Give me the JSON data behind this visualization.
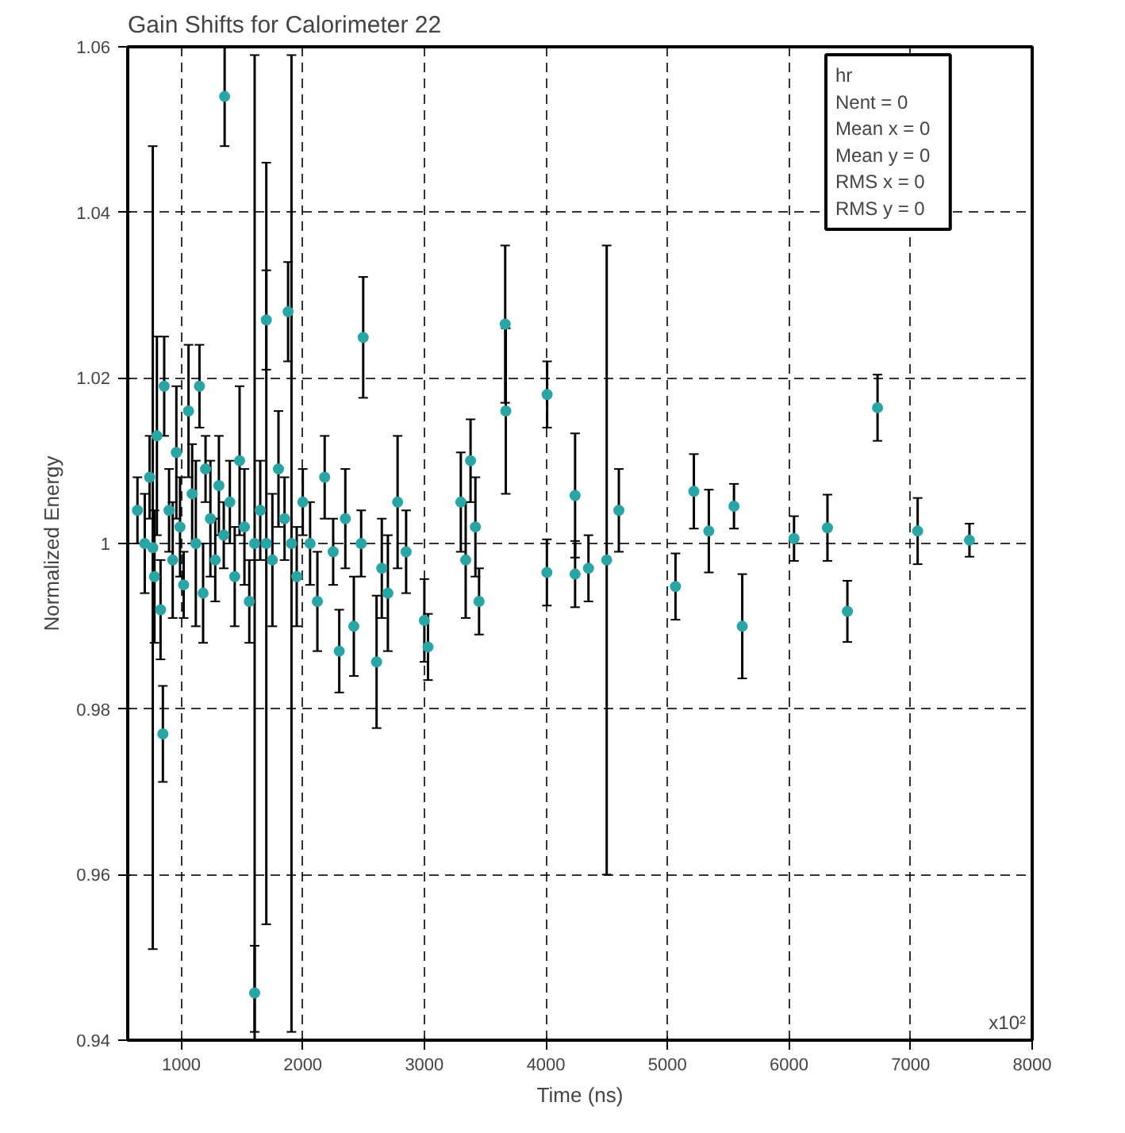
{
  "chart_data": {
    "type": "scatter",
    "title": "Gain Shifts for Calorimeter 22",
    "xlabel": "Time (ns)",
    "ylabel": "Normalized Energy",
    "annotations": [
      "hr",
      "Nent = 0",
      "Mean x =   0",
      "Mean y =   0",
      "RMS x =   0",
      "RMS y =   0",
      "x10²"
    ],
    "xlim": [
      560,
      8000
    ],
    "ylim": [
      0.94,
      1.06
    ],
    "xticks": [
      1000,
      2000,
      3000,
      4000,
      5000,
      6000,
      7000,
      8000
    ],
    "yticks": [
      0.94,
      0.96,
      0.98,
      1,
      1.02,
      1.04,
      1.06
    ],
    "grid": true,
    "marker": "circle",
    "series": [
      {
        "color": "#2aa5a5",
        "x": [
          640,
          700,
          740,
          766,
          780,
          800,
          830,
          849,
          860,
          900,
          930,
          960,
          990,
          1020,
          1060,
          1090,
          1120,
          1150,
          1180,
          1200,
          1240,
          1280,
          1310,
          1350,
          1357,
          1400,
          1440,
          1480,
          1520,
          1560,
          1604,
          1604,
          1650,
          1700,
          1700,
          1750,
          1800,
          1850,
          1879,
          1907,
          1950,
          2000,
          2060,
          2120,
          2180,
          2250,
          2300,
          2350,
          2420,
          2480,
          2497,
          2607,
          2650,
          2700,
          2780,
          2850,
          3000,
          3030,
          3300,
          3340,
          3380,
          3420,
          3450,
          3665,
          3670,
          4010,
          4008,
          4240,
          4240,
          4350,
          4500,
          4600,
          5066,
          5217,
          5340,
          5547,
          5615,
          6041,
          6316,
          6480,
          6728,
          7058,
          7484
        ],
        "values": [
          1.004,
          1.0,
          1.008,
          0.9995,
          0.996,
          1.013,
          0.992,
          0.977,
          1.019,
          1.004,
          0.998,
          1.011,
          1.002,
          0.995,
          1.016,
          1.006,
          1.0,
          1.019,
          0.994,
          1.009,
          1.003,
          0.998,
          1.007,
          1.001,
          1.054,
          1.005,
          0.996,
          1.01,
          1.002,
          0.993,
          0.9457,
          1.0,
          1.004,
          1.027,
          1.0,
          0.998,
          1.009,
          1.003,
          1.028,
          1.0,
          0.996,
          1.005,
          1.0,
          0.993,
          1.008,
          0.999,
          0.987,
          1.003,
          0.99,
          1.0,
          1.0249,
          0.9857,
          0.997,
          0.994,
          1.005,
          0.999,
          0.9907,
          0.9875,
          1.005,
          0.998,
          1.01,
          1.002,
          0.993,
          1.0265,
          1.016,
          1.018,
          0.9965,
          1.0058,
          0.9963,
          0.997,
          0.998,
          1.004,
          0.9948,
          1.0063,
          1.0015,
          1.0045,
          0.99,
          1.0006,
          1.0019,
          0.9918,
          1.0164,
          1.0015,
          1.0004
        ],
        "errors": [
          0.004,
          0.006,
          0.005,
          0.0485,
          0.008,
          0.012,
          0.006,
          0.0058,
          0.006,
          0.005,
          0.007,
          0.008,
          0.006,
          0.004,
          0.008,
          0.006,
          0.01,
          0.005,
          0.006,
          0.004,
          0.007,
          0.005,
          0.006,
          0.004,
          0.006,
          0.005,
          0.006,
          0.009,
          0.007,
          0.005,
          0.0057,
          0.059,
          0.006,
          0.006,
          0.046,
          0.008,
          0.007,
          0.005,
          0.006,
          0.059,
          0.006,
          0.004,
          0.005,
          0.006,
          0.005,
          0.004,
          0.005,
          0.006,
          0.006,
          0.004,
          0.0073,
          0.008,
          0.006,
          0.007,
          0.008,
          0.005,
          0.005,
          0.004,
          0.006,
          0.007,
          0.005,
          0.006,
          0.004,
          0.0095,
          0.01,
          0.004,
          0.004,
          0.0075,
          0.004,
          0.004,
          0.038,
          0.005,
          0.004,
          0.0045,
          0.005,
          0.0027,
          0.0063,
          0.0027,
          0.004,
          0.0037,
          0.004,
          0.004,
          0.002
        ]
      }
    ]
  }
}
